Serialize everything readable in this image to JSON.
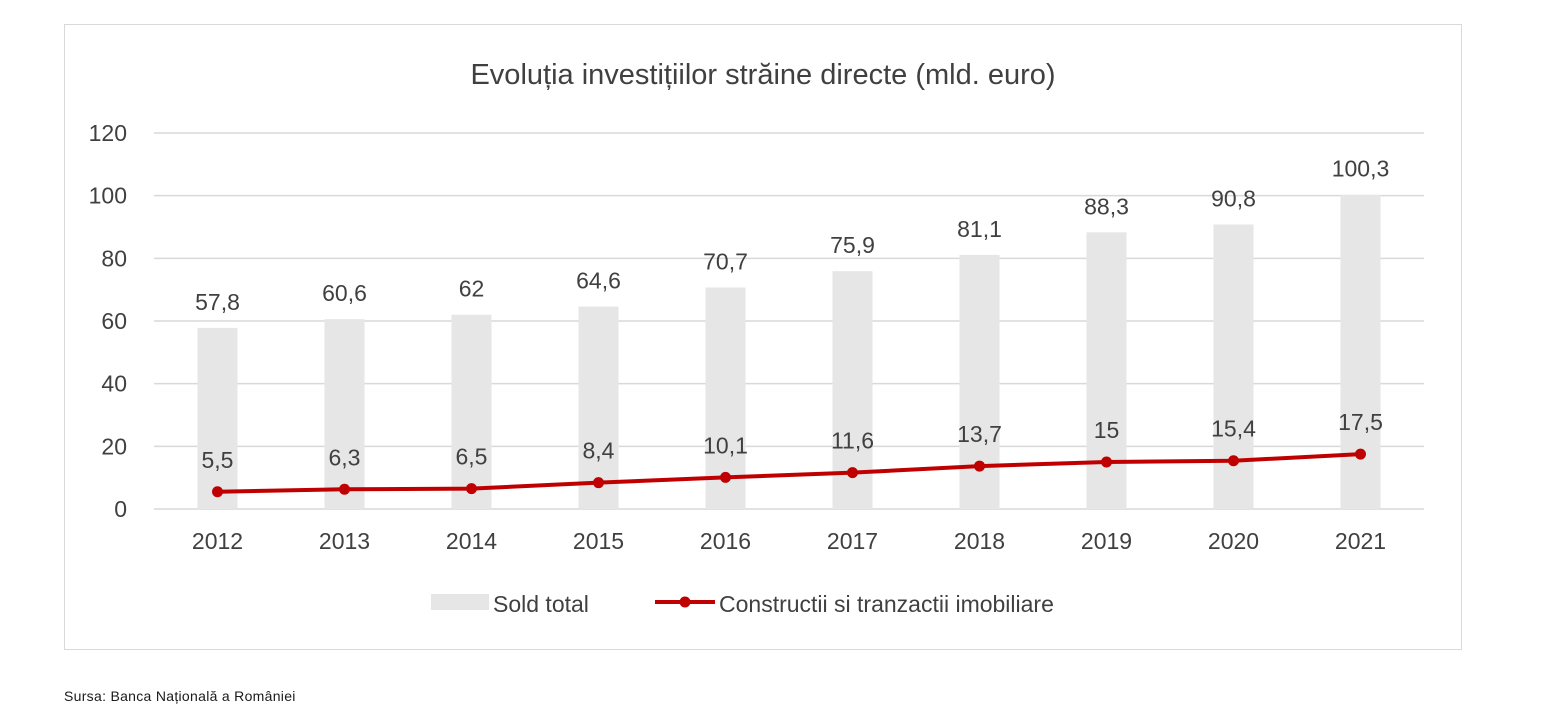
{
  "chart_data": {
    "type": "bar",
    "title": "Evoluția investițiilor străine directe (mld. euro)",
    "xlabel": "",
    "ylabel": "",
    "ylim": [
      0,
      120
    ],
    "yticks": [
      "0",
      "20",
      "40",
      "60",
      "80",
      "100",
      "120"
    ],
    "grid": true,
    "legend_position": "bottom",
    "categories": [
      "2012",
      "2013",
      "2014",
      "2015",
      "2016",
      "2017",
      "2018",
      "2019",
      "2020",
      "2021"
    ],
    "series": [
      {
        "name": "Sold total",
        "type": "bar",
        "color": "#e6e6e6",
        "values": [
          57.8,
          60.6,
          62,
          64.6,
          70.7,
          75.9,
          81.1,
          88.3,
          90.8,
          100.3
        ],
        "labels": [
          "57,8",
          "60,6",
          "62",
          "64,6",
          "70,7",
          "75,9",
          "81,1",
          "88,3",
          "90,8",
          "100,3"
        ]
      },
      {
        "name": "Constructii si tranzactii imobiliare",
        "type": "line",
        "color": "#c00000",
        "values": [
          5.5,
          6.3,
          6.5,
          8.4,
          10.1,
          11.6,
          13.7,
          15,
          15.4,
          17.5
        ],
        "labels": [
          "5,5",
          "6,3",
          "6,5",
          "8,4",
          "10,1",
          "11,6",
          "13,7",
          "15",
          "15,4",
          "17,5"
        ]
      }
    ]
  },
  "source": "Sursa: Banca Națională a României"
}
